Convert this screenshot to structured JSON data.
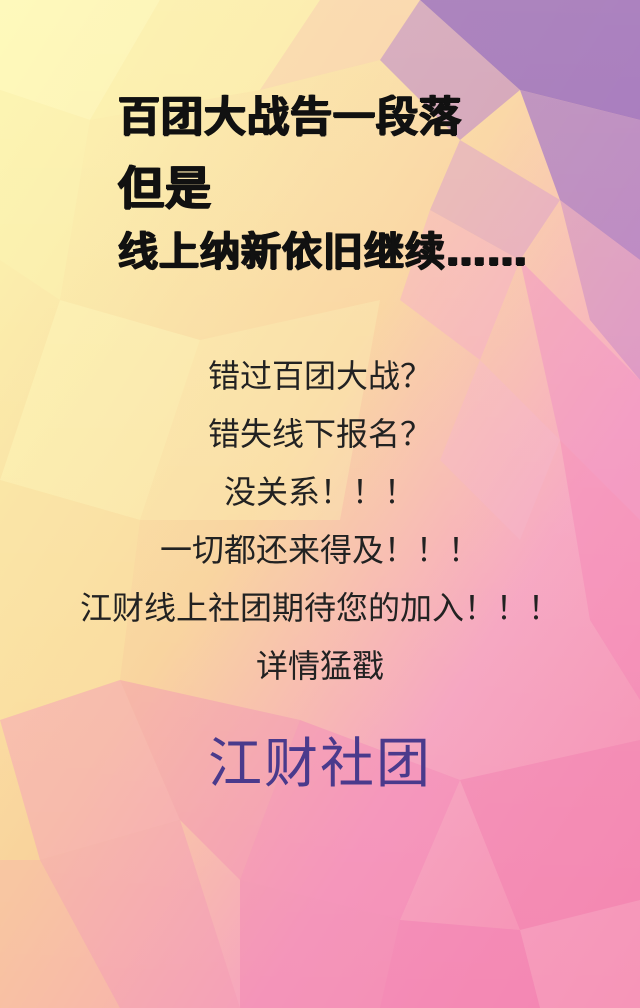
{
  "colors": {
    "brand_text": "#4a3a8c",
    "headline_text": "#111111",
    "body_text": "#222222",
    "bg_yellow": "#fbf59a",
    "bg_pink": "#f58ab7",
    "bg_purple": "#8a5bb8"
  },
  "headline": {
    "line1": "百团大战告一段落",
    "line2": "但是",
    "line3": "线上纳新依旧继续……"
  },
  "body": {
    "lines": [
      "错过百团大战？",
      "错失线下报名？",
      "没关系！！！",
      "一切都还来得及！！！",
      "江财线上社团期待您的加入！！！",
      "详情猛戳"
    ]
  },
  "brand": {
    "name": "江财社团"
  }
}
